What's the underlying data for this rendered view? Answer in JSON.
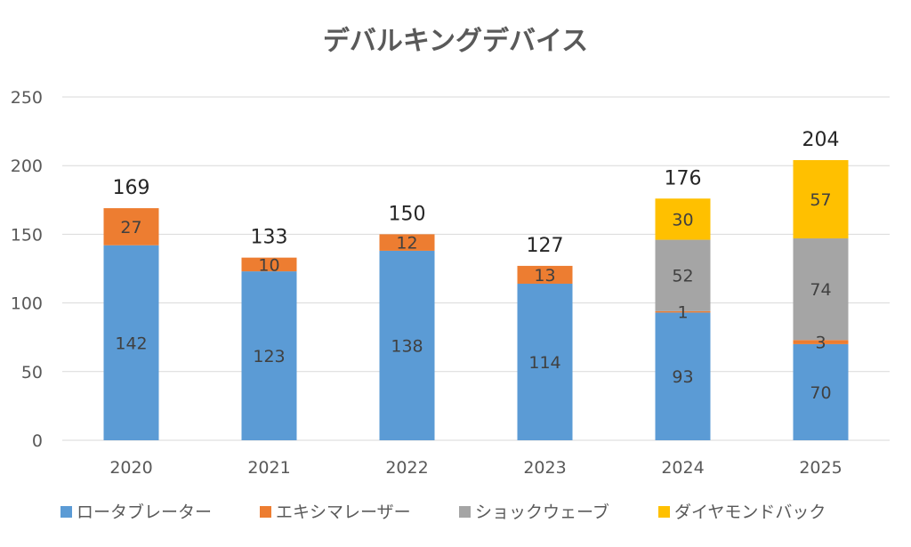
{
  "chart_data": {
    "type": "bar",
    "stacked": true,
    "title": "デバルキングデバイス",
    "xlabel": "",
    "ylabel": "",
    "ylim": [
      0,
      250
    ],
    "yticks": [
      0,
      50,
      100,
      150,
      200,
      250
    ],
    "grid": true,
    "legend_position": "bottom",
    "categories": [
      "2020",
      "2021",
      "2022",
      "2023",
      "2024",
      "2025"
    ],
    "series": [
      {
        "name": "ロータブレーター",
        "color": "#5b9bd5",
        "values": [
          142,
          123,
          138,
          114,
          93,
          70
        ]
      },
      {
        "name": "エキシマレーザー",
        "color": "#ed7d31",
        "values": [
          27,
          10,
          12,
          13,
          1,
          3
        ]
      },
      {
        "name": "ショックウェーブ",
        "color": "#a5a5a5",
        "values": [
          null,
          null,
          null,
          null,
          52,
          74
        ]
      },
      {
        "name": "ダイヤモンドバック",
        "color": "#ffc000",
        "values": [
          null,
          null,
          null,
          null,
          30,
          57
        ]
      }
    ],
    "totals": [
      169,
      133,
      150,
      127,
      176,
      204
    ]
  }
}
